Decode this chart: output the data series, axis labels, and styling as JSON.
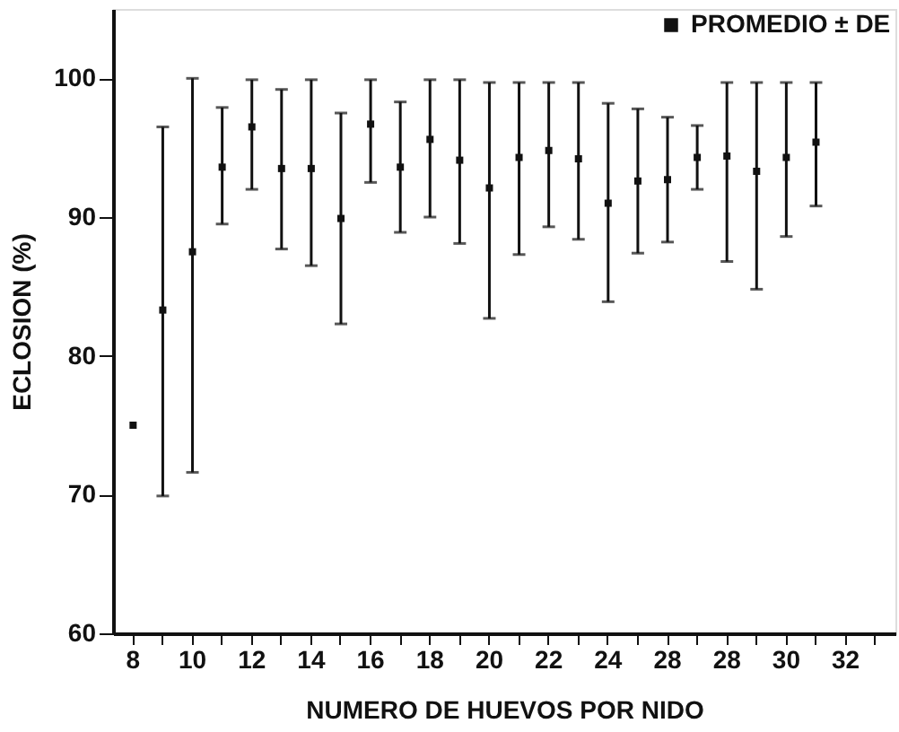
{
  "chart_data": {
    "type": "scatter",
    "xlabel": "NUMERO DE HUEVOS POR NIDO",
    "ylabel": "ECLOSION (%)",
    "categories": [
      "8",
      null,
      "10",
      null,
      "12",
      null,
      "14",
      null,
      "16",
      null,
      "18",
      null,
      "20",
      null,
      "22",
      null,
      "24",
      null,
      "28",
      null,
      "28",
      null,
      "30",
      null,
      "32",
      null
    ],
    "series": [
      {
        "name": "PROMEDIO ± DE",
        "color": "#111111",
        "values": [
          75,
          83.3,
          87.5,
          93.6,
          96.5,
          93.5,
          93.5,
          89.9,
          96.7,
          93.6,
          95.6,
          94.1,
          92.1,
          94.3,
          94.8,
          94.2,
          91,
          92.6,
          92.7,
          94.3,
          94.4,
          93.3,
          94.3,
          95.4,
          null,
          null
        ],
        "errors": [
          null,
          [
            69.9,
            96.5
          ],
          [
            71.6,
            100
          ],
          [
            89.5,
            97.9
          ],
          [
            92,
            99.9
          ],
          [
            87.7,
            99.2
          ],
          [
            86.5,
            99.9
          ],
          [
            82.3,
            97.5
          ],
          [
            92.5,
            99.9
          ],
          [
            88.9,
            98.3
          ],
          [
            90,
            99.9
          ],
          [
            88.1,
            99.9
          ],
          [
            82.7,
            99.7
          ],
          [
            87.3,
            99.7
          ],
          [
            89.3,
            99.7
          ],
          [
            88.4,
            99.7
          ],
          [
            83.9,
            98.2
          ],
          [
            87.4,
            97.8
          ],
          [
            88.2,
            97.2
          ],
          [
            92,
            96.6
          ],
          [
            86.8,
            99.7
          ],
          [
            84.8,
            99.7
          ],
          [
            88.6,
            99.7
          ],
          [
            90.8,
            99.7
          ],
          null,
          null
        ]
      }
    ],
    "ylim": [
      60,
      105
    ],
    "yticks": [
      60,
      70,
      80,
      90,
      100
    ],
    "grid": false,
    "legend": "top right",
    "marker": "square"
  }
}
